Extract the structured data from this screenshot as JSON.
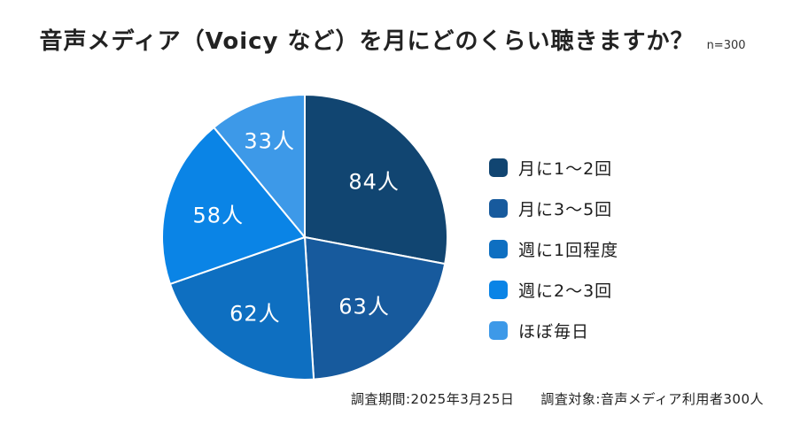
{
  "title": {
    "text": "音声メディア（Voicy など）を月にどのくらい聴きますか？",
    "sample_size": "n=300"
  },
  "chart_data": {
    "type": "pie",
    "title": "音声メディア（Voicy など）を月にどのくらい聴きますか？",
    "sample_size": "n=300",
    "total": 300,
    "categories": [
      "月に1～2回",
      "月に3～5回",
      "週に1回程度",
      "週に2～3回",
      "ほぼ毎日"
    ],
    "values": [
      84,
      63,
      62,
      58,
      33
    ],
    "slice_labels": [
      "84人",
      "63人",
      "62人",
      "58人",
      "33人"
    ],
    "colors": [
      "#114571",
      "#175a9d",
      "#0e6fc1",
      "#0a84e6",
      "#3d99e8"
    ],
    "slice_border_color": "#ffffff",
    "start_angle_deg": 0,
    "direction": "clockwise",
    "legend_position": "right",
    "label_color": "#ffffff"
  },
  "footer": {
    "period": "調査期間:2025年3月25日",
    "target": "調査対象:音声メディア利用者300人"
  }
}
